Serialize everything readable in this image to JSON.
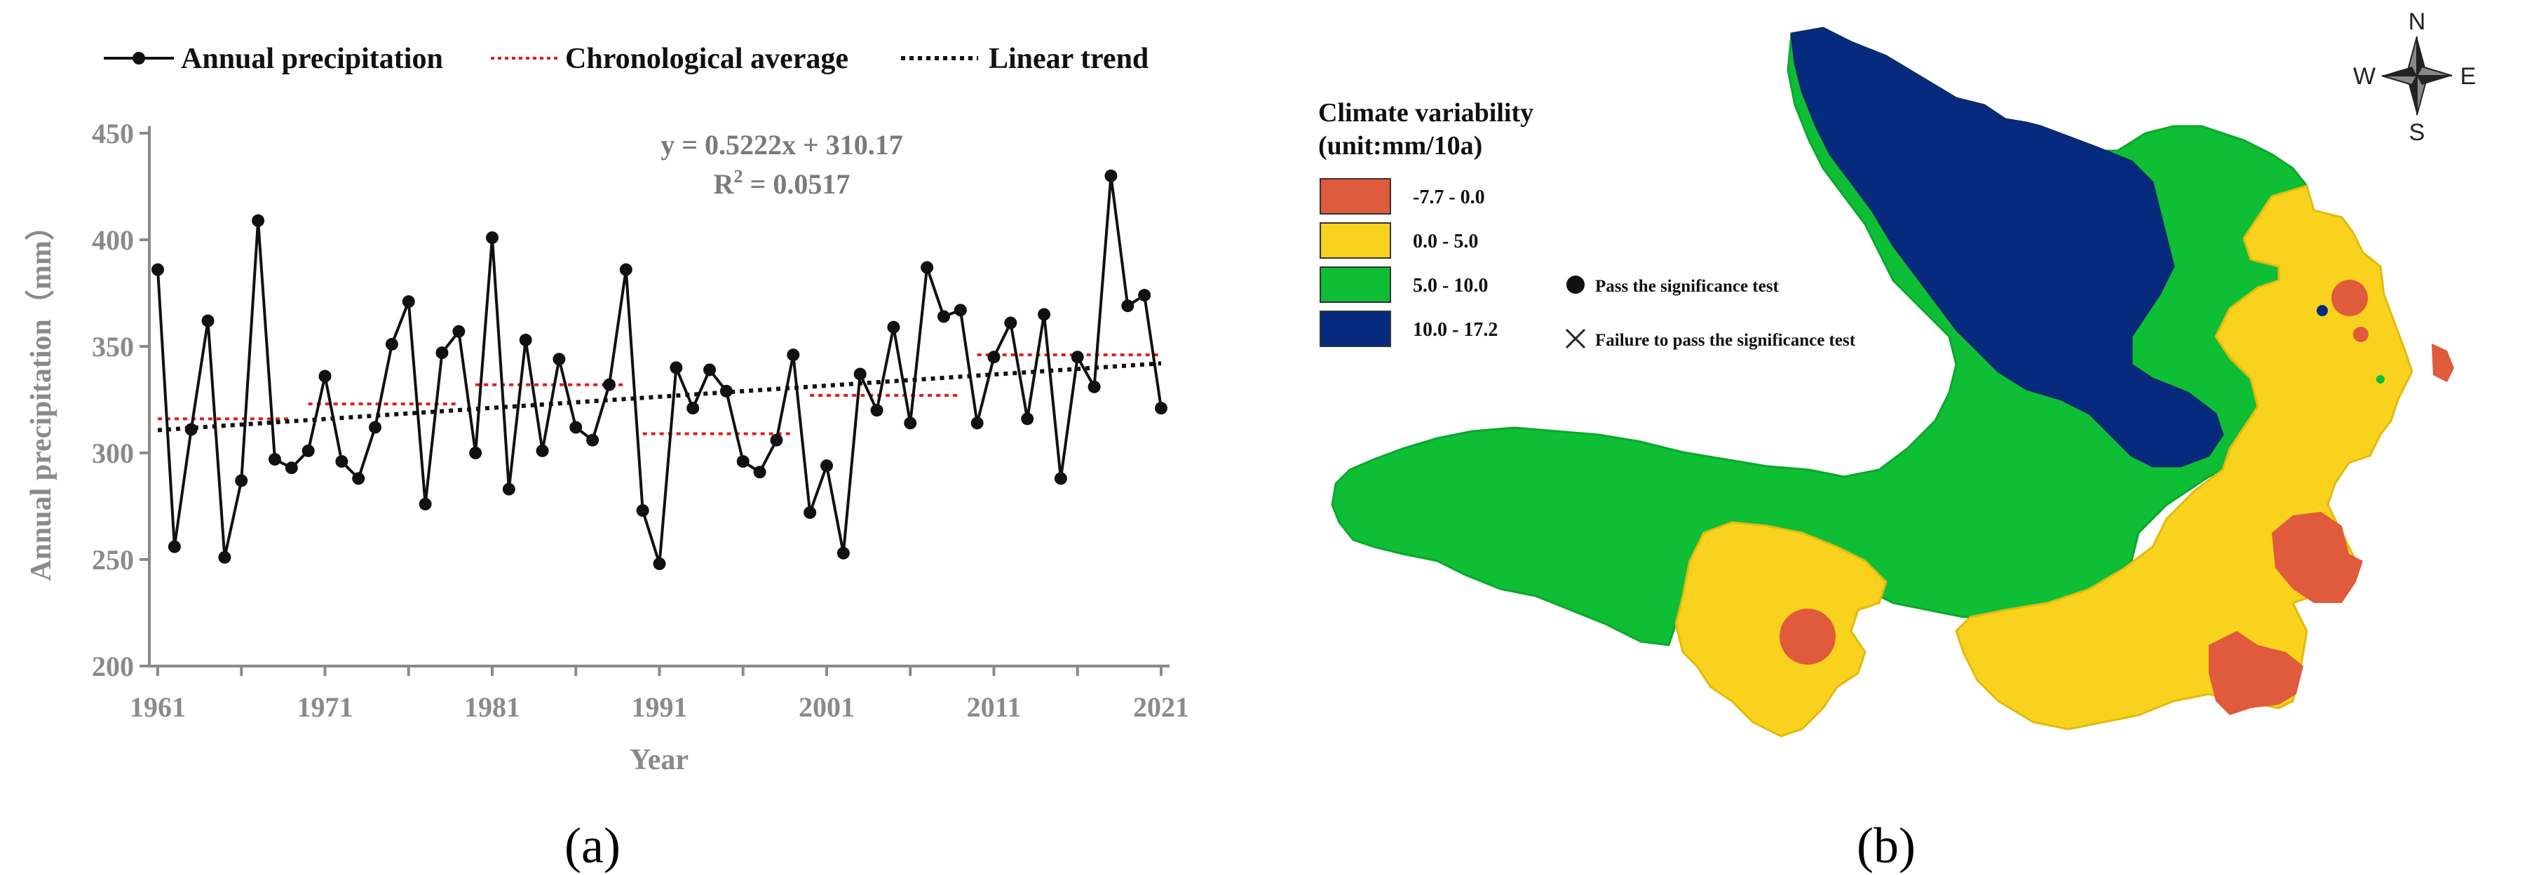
{
  "chart_data": [
    {
      "type": "line",
      "panel_label": "(a)",
      "xlabel": "Year",
      "ylabel": "Annual precipitation（mm）",
      "xlim": [
        1961,
        2021
      ],
      "ylim": [
        200,
        450
      ],
      "x_ticks": [
        "1961",
        "1971",
        "1981",
        "1991",
        "2001",
        "2011",
        "2021"
      ],
      "y_ticks": [
        "200",
        "250",
        "300",
        "350",
        "400",
        "450"
      ],
      "legend": {
        "precip": "Annual precipitation",
        "avg": "Chronological average",
        "trend": "Linear trend"
      },
      "annotation": {
        "equation": "y = 0.5222x + 310.17",
        "r2_prefix": "R",
        "r2_sup": "2",
        "r2_value": " = 0.0517"
      },
      "series": [
        {
          "name": "Annual precipitation",
          "x": [
            1961,
            1962,
            1963,
            1964,
            1965,
            1966,
            1967,
            1968,
            1969,
            1970,
            1971,
            1972,
            1973,
            1974,
            1975,
            1976,
            1977,
            1978,
            1979,
            1980,
            1981,
            1982,
            1983,
            1984,
            1985,
            1986,
            1987,
            1988,
            1989,
            1990,
            1991,
            1992,
            1993,
            1994,
            1995,
            1996,
            1997,
            1998,
            1999,
            2000,
            2001,
            2002,
            2003,
            2004,
            2005,
            2006,
            2007,
            2008,
            2009,
            2010,
            2011,
            2012,
            2013,
            2014,
            2015,
            2016,
            2017,
            2018,
            2019,
            2020,
            2021
          ],
          "values": [
            386,
            256,
            311,
            362,
            251,
            287,
            409,
            297,
            293,
            301,
            336,
            296,
            288,
            312,
            351,
            371,
            276,
            347,
            357,
            300,
            401,
            283,
            353,
            301,
            344,
            312,
            306,
            332,
            386,
            273,
            248,
            340,
            321,
            339,
            329,
            296,
            291,
            306,
            346,
            272,
            294,
            253,
            337,
            320,
            359,
            314,
            387,
            364,
            367,
            314,
            345,
            361,
            316,
            365,
            288,
            345,
            331,
            430,
            369,
            374,
            321
          ]
        },
        {
          "name": "Chronological average",
          "segments": [
            {
              "x0": 1961,
              "x1": 1969,
              "y": 316
            },
            {
              "x0": 1970,
              "x1": 1979,
              "y": 323
            },
            {
              "x0": 1980,
              "x1": 1989,
              "y": 332
            },
            {
              "x0": 1990,
              "x1": 1999,
              "y": 309
            },
            {
              "x0": 2000,
              "x1": 2009,
              "y": 327
            },
            {
              "x0": 2010,
              "x1": 2021,
              "y": 346
            }
          ]
        },
        {
          "name": "Linear trend",
          "slope": 0.5222,
          "intercept": 310.17
        }
      ]
    },
    {
      "type": "map",
      "panel_label": "(b)",
      "legend_title_1": "Climate variability",
      "legend_title_2": "(unit:mm/10a)",
      "classes": [
        {
          "label": "-7.7  - 0.0",
          "color": "#e05a3c"
        },
        {
          "label": "0.0  - 5.0",
          "color": "#f8d21c"
        },
        {
          "label": "5.0  - 10.0",
          "color": "#0ebe35"
        },
        {
          "label": "10.0 - 17.2",
          "color": "#062a7e"
        }
      ],
      "symbols": {
        "pass": "Pass the significance test",
        "fail": "Failure to pass the significance test"
      },
      "compass": {
        "n": "N",
        "s": "S",
        "e": "E",
        "w": "W"
      }
    }
  ]
}
